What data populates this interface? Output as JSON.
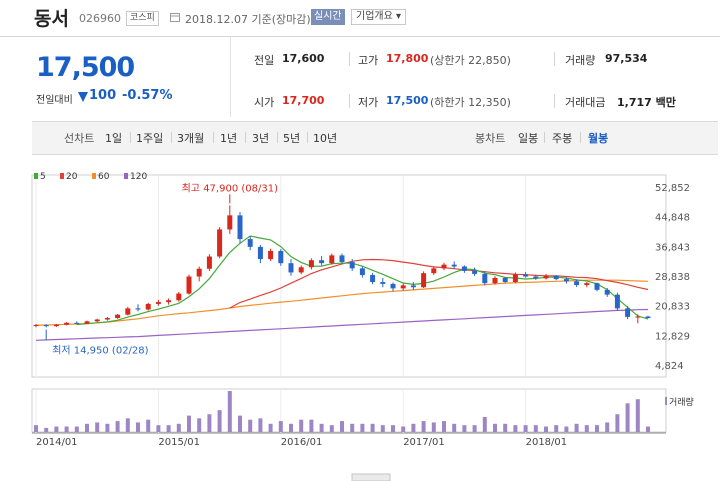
{
  "header": {
    "name": "동서",
    "code": "026960",
    "market": "코스피",
    "date_label": "2018.12.07 기준(장마감)",
    "realtime_button": "실시간",
    "corp_overview": "기업개요"
  },
  "price": {
    "current": "17,500",
    "compare_label": "전일대비",
    "change": "100",
    "change_pct": "-0.57%"
  },
  "stats": {
    "prev_label": "전일",
    "prev_value": "17,600",
    "high_label": "고가",
    "high_value": "17,800",
    "high_sub": "(상한가 22,850)",
    "volume_label": "거래량",
    "volume_value": "97,534",
    "open_label": "시가",
    "open_value": "17,700",
    "low_label": "저가",
    "low_value": "17,500",
    "low_sub": "(하한가 12,350)",
    "amount_label": "거래대금",
    "amount_value": "1,717 백만"
  },
  "periods": {
    "line_label": "선차트",
    "line_items": [
      "1일",
      "1주일",
      "3개월",
      "1년",
      "3년",
      "5년",
      "10년"
    ],
    "candle_label": "봉차트",
    "candle_items": [
      "일봉",
      "주봉",
      "월봉"
    ],
    "active_candle": "월봉"
  },
  "colors": {
    "up": "#d9271d",
    "down": "#2a66c9",
    "ma5": "#44a938",
    "ma20": "#e04138",
    "ma60": "#f0902a",
    "ma120": "#9b62c4",
    "volume": "#9e86c6"
  },
  "chart_data": {
    "type": "candlestick",
    "legend": [
      {
        "name": "5",
        "color": "#44a938"
      },
      {
        "name": "20",
        "color": "#e04138"
      },
      {
        "name": "60",
        "color": "#f0902a"
      },
      {
        "name": "120",
        "color": "#9b62c4"
      }
    ],
    "y_ticks": [
      "52,852",
      "44,848",
      "36,843",
      "28,838",
      "20,833",
      "12,829",
      "4,824"
    ],
    "y_tick_values": [
      52852,
      44848,
      36843,
      28838,
      20833,
      12829,
      4824
    ],
    "x_ticks": [
      "2014/01",
      "2015/01",
      "2016/01",
      "2017/01",
      "2018/01"
    ],
    "x_tick_index": [
      0,
      12,
      24,
      36,
      48
    ],
    "annotation_high": "최고 47,900 (08/31)",
    "annotation_low": "최저 14,950 (02/28)",
    "high_index": 19,
    "low_index": 1,
    "volume_label": "거래량",
    "candles": [
      [
        15500,
        15900,
        15000,
        15600
      ],
      [
        15600,
        15800,
        14950,
        15300
      ],
      [
        15300,
        15900,
        15100,
        15700
      ],
      [
        15700,
        16400,
        15500,
        16200
      ],
      [
        16200,
        16600,
        15800,
        16000
      ],
      [
        16000,
        16800,
        15900,
        16600
      ],
      [
        16600,
        17300,
        16400,
        17100
      ],
      [
        17100,
        17800,
        16800,
        17500
      ],
      [
        17500,
        18600,
        17300,
        18400
      ],
      [
        18400,
        20500,
        18200,
        20100
      ],
      [
        20100,
        21200,
        19300,
        19800
      ],
      [
        19800,
        21600,
        19500,
        21300
      ],
      [
        21300,
        22400,
        20800,
        21800
      ],
      [
        21800,
        22800,
        21100,
        22300
      ],
      [
        22300,
        24500,
        21900,
        24100
      ],
      [
        24100,
        29200,
        23800,
        28700
      ],
      [
        28700,
        31400,
        27400,
        30800
      ],
      [
        30800,
        34700,
        30200,
        34100
      ],
      [
        34100,
        42000,
        33600,
        41400
      ],
      [
        41400,
        47900,
        40200,
        45200
      ],
      [
        45200,
        46100,
        37700,
        38800
      ],
      [
        38800,
        39600,
        35800,
        36700
      ],
      [
        36700,
        37200,
        32300,
        33400
      ],
      [
        33400,
        36200,
        32900,
        35600
      ],
      [
        35600,
        36100,
        31600,
        32300
      ],
      [
        32300,
        33400,
        28900,
        29800
      ],
      [
        29800,
        31700,
        29300,
        31200
      ],
      [
        31200,
        33600,
        30600,
        33100
      ],
      [
        33100,
        34200,
        31700,
        32300
      ],
      [
        32300,
        34900,
        31900,
        34400
      ],
      [
        34400,
        34900,
        32200,
        32600
      ],
      [
        32600,
        33400,
        30200,
        30900
      ],
      [
        30900,
        31400,
        28400,
        29100
      ],
      [
        29100,
        29700,
        26600,
        27200
      ],
      [
        27200,
        28300,
        25800,
        26700
      ],
      [
        26700,
        27100,
        24700,
        25500
      ],
      [
        25500,
        26800,
        24900,
        26300
      ],
      [
        26300,
        27200,
        25100,
        25800
      ],
      [
        25800,
        30100,
        25600,
        29600
      ],
      [
        29600,
        31400,
        29100,
        30900
      ],
      [
        30900,
        32400,
        30400,
        31900
      ],
      [
        31900,
        32800,
        30800,
        31400
      ],
      [
        31400,
        31700,
        29700,
        30200
      ],
      [
        30200,
        31100,
        28800,
        29400
      ],
      [
        29400,
        30100,
        26300,
        26900
      ],
      [
        26900,
        28800,
        26500,
        28300
      ],
      [
        28300,
        28600,
        26900,
        27200
      ],
      [
        27200,
        29800,
        26900,
        29300
      ],
      [
        29300,
        29900,
        28400,
        28700
      ],
      [
        28700,
        29200,
        27800,
        28200
      ],
      [
        28200,
        29400,
        27900,
        28900
      ],
      [
        28900,
        29100,
        27700,
        28000
      ],
      [
        28000,
        28500,
        26800,
        27400
      ],
      [
        27400,
        27900,
        25900,
        26400
      ],
      [
        26400,
        27200,
        25800,
        26900
      ],
      [
        26900,
        27100,
        24700,
        25100
      ],
      [
        25100,
        25600,
        23200,
        23800
      ],
      [
        23800,
        24300,
        19400,
        20100
      ],
      [
        20100,
        20700,
        17200,
        17800
      ],
      [
        17800,
        18500,
        16100,
        17900
      ],
      [
        17900,
        18100,
        17400,
        17500
      ]
    ],
    "ma5": [
      null,
      null,
      null,
      null,
      15760,
      15960,
      16220,
      16480,
      16900,
      17740,
      18460,
      19220,
      19900,
      20660,
      21480,
      23240,
      25380,
      28140,
      31740,
      35200,
      37660,
      39620,
      39060,
      38580,
      36760,
      34040,
      32500,
      31460,
      31500,
      32160,
      32280,
      32280,
      31480,
      30380,
      29300,
      28100,
      26960,
      26580,
      26840,
      27460,
      28560,
      29800,
      30720,
      30560,
      29600,
      29220,
      28440,
      28300,
      28020,
      28180,
      28500,
      28560,
      28280,
      27820,
      27500,
      26740,
      25180,
      22740,
      20400,
      18080,
      17200
    ],
    "ma20": [
      null,
      null,
      null,
      null,
      null,
      null,
      null,
      null,
      null,
      null,
      null,
      null,
      null,
      null,
      null,
      null,
      null,
      null,
      null,
      20200,
      21700,
      22600,
      23600,
      24500,
      25600,
      26900,
      28200,
      29500,
      30500,
      31300,
      32100,
      32800,
      33200,
      33300,
      33200,
      33000,
      32600,
      32200,
      31700,
      31300,
      31100,
      30800,
      30500,
      30300,
      30000,
      29700,
      29500,
      29300,
      29200,
      29000,
      28900,
      28900,
      28700,
      28500,
      28400,
      28100,
      27600,
      27100,
      26500,
      25800,
      25200
    ],
    "ma60": [
      15600,
      15620,
      15700,
      15800,
      15900,
      16000,
      16200,
      16400,
      16700,
      17000,
      17300,
      17700,
      18100,
      18400,
      18700,
      18900,
      19200,
      19500,
      19800,
      20200,
      20600,
      20900,
      21200,
      21500,
      21800,
      22000,
      22300,
      22600,
      22900,
      23200,
      23500,
      23800,
      24100,
      24300,
      24500,
      24700,
      24900,
      25100,
      25300,
      25500,
      25700,
      25900,
      26100,
      26300,
      26500,
      26700,
      26900,
      27000,
      27100,
      27200,
      27300,
      27400,
      27500,
      27600,
      27700,
      27700,
      27700,
      27700,
      27600,
      27500,
      27400
    ],
    "ma120": [
      11500,
      11600,
      11700,
      11800,
      11900,
      12000,
      12100,
      12200,
      12300,
      12400,
      12500,
      12650,
      12800,
      12950,
      13100,
      13250,
      13400,
      13550,
      13700,
      13850,
      14000,
      14150,
      14300,
      14450,
      14600,
      14750,
      14900,
      15050,
      15200,
      15350,
      15500,
      15650,
      15800,
      15950,
      16100,
      16250,
      16400,
      16550,
      16700,
      16850,
      17000,
      17150,
      17300,
      17450,
      17600,
      17750,
      17900,
      18050,
      18200,
      18350,
      18500,
      18650,
      18800,
      18950,
      19100,
      19250,
      19400,
      19550,
      19650,
      19750,
      19800
    ],
    "volume": [
      5,
      3,
      4,
      4,
      4,
      6,
      7,
      6,
      8,
      10,
      7,
      9,
      5,
      5,
      6,
      12,
      10,
      13,
      16,
      30,
      12,
      9,
      10,
      6,
      8,
      6,
      9,
      9,
      6,
      5,
      8,
      6,
      6,
      6,
      5,
      5,
      4,
      6,
      8,
      7,
      8,
      6,
      5,
      5,
      11,
      6,
      6,
      5,
      5,
      5,
      4,
      5,
      4,
      6,
      5,
      5,
      7,
      13,
      21,
      24,
      4
    ]
  }
}
